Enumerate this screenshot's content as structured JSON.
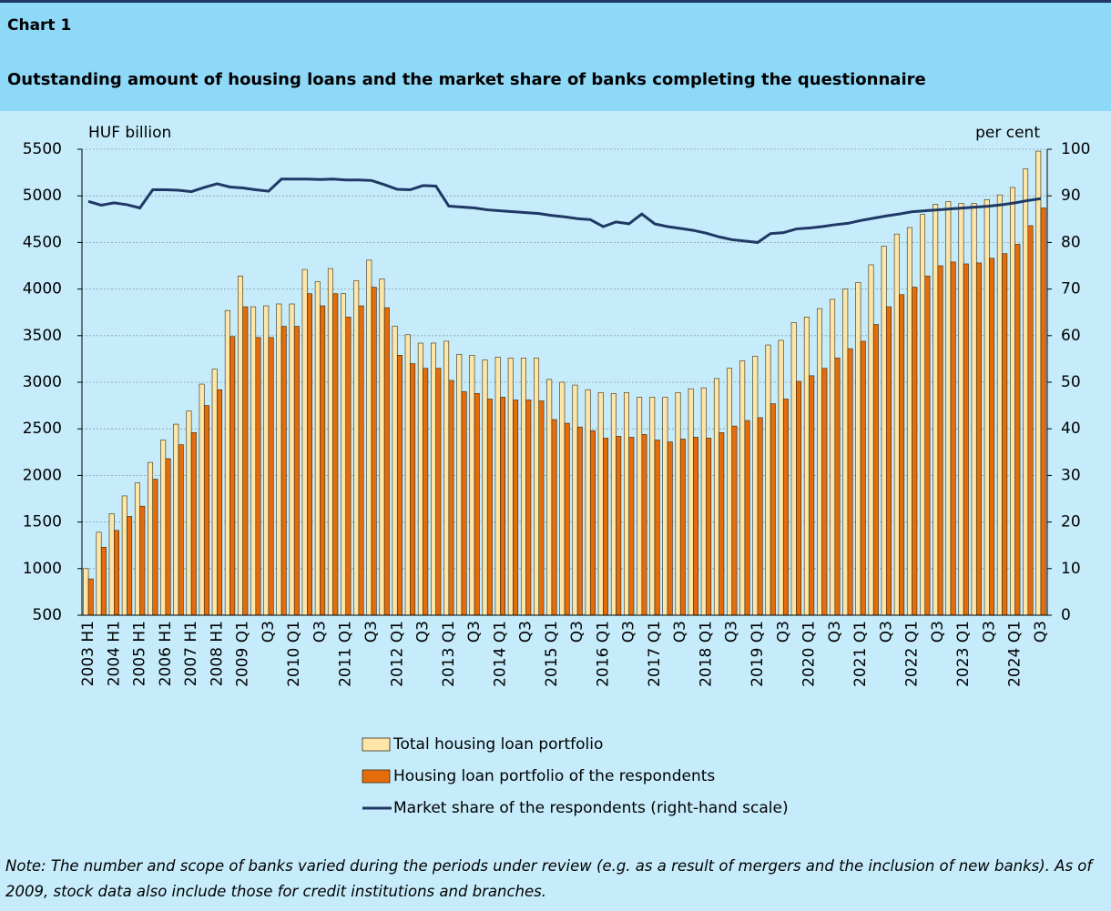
{
  "chart_data": {
    "type": "bar_line",
    "label": "Chart 1",
    "title": "Outstanding amount of housing loans and the market share of banks completing the questionnaire",
    "y_label": "HUF billion",
    "y2_label": "per cent",
    "note": "Note: The number and scope of banks varied during the periods under review (e.g. as a result of mergers and the inclusion of new banks). As of 2009, stock data also include those for credit institutions and branches.",
    "categories": [
      "2003 H1",
      null,
      "2004 H1",
      null,
      "2005 H1",
      null,
      "2006 H1",
      null,
      "2007 H1",
      null,
      "2008 H1",
      null,
      "2009 Q1",
      null,
      "Q3",
      null,
      "2010 Q1",
      null,
      "Q3",
      null,
      "2011 Q1",
      null,
      "Q3",
      null,
      "2012 Q1",
      null,
      "Q3",
      null,
      "2013 Q1",
      null,
      "Q3",
      null,
      "2014 Q1",
      null,
      "Q3",
      null,
      "2015 Q1",
      null,
      "Q3",
      null,
      "2016 Q1",
      null,
      "Q3",
      null,
      "2017 Q1",
      null,
      "Q3",
      null,
      "2018 Q1",
      null,
      "Q3",
      null,
      "2019 Q1",
      null,
      "Q3",
      null,
      "2020 Q1",
      null,
      "Q3",
      null,
      "2021 Q1",
      null,
      "Q3",
      null,
      "2022 Q1",
      null,
      "Q3",
      null,
      "2023 Q1",
      null,
      "Q3",
      null,
      "2024 Q1",
      null,
      "Q3"
    ],
    "series": [
      {
        "name": "Total housing loan portfolio",
        "type": "bar",
        "color": "#fde6a8",
        "values": [
          1000,
          1390,
          1590,
          1780,
          1920,
          2140,
          2380,
          2550,
          2690,
          2980,
          3140,
          3770,
          4140,
          3810,
          3820,
          3840,
          3840,
          4210,
          4080,
          4220,
          3950,
          4090,
          4310,
          4110,
          3600,
          3510,
          3420,
          3420,
          3440,
          3300,
          3290,
          3240,
          3270,
          3260,
          3260,
          3260,
          3030,
          3000,
          2970,
          2920,
          2890,
          2880,
          2890,
          2840,
          2840,
          2840,
          2890,
          2930,
          2940,
          3040,
          3150,
          3230,
          3280,
          3400,
          3450,
          3640,
          3700,
          3790,
          3890,
          4000,
          4070,
          4260,
          4460,
          4590,
          4660,
          4800,
          4910,
          4940,
          4920,
          4920,
          4960,
          5010,
          5090,
          5290,
          5480
        ]
      },
      {
        "name": "Housing loan portfolio of the respondents",
        "type": "bar",
        "color": "#e46c0a",
        "values": [
          890,
          1230,
          1410,
          1560,
          1670,
          1960,
          2180,
          2330,
          2460,
          2750,
          2920,
          3490,
          3810,
          3480,
          3480,
          3600,
          3600,
          3950,
          3820,
          3950,
          3700,
          3820,
          4020,
          3800,
          3290,
          3200,
          3150,
          3150,
          3020,
          2900,
          2880,
          2820,
          2840,
          2810,
          2810,
          2800,
          2600,
          2560,
          2520,
          2480,
          2400,
          2420,
          2410,
          2440,
          2380,
          2360,
          2390,
          2410,
          2400,
          2460,
          2530,
          2590,
          2620,
          2770,
          2820,
          3010,
          3070,
          3150,
          3260,
          3360,
          3440,
          3620,
          3810,
          3940,
          4020,
          4140,
          4250,
          4290,
          4270,
          4280,
          4330,
          4380,
          4480,
          4680,
          4870
        ]
      },
      {
        "name": "Market share of the respondents (right-hand scale)",
        "type": "line",
        "axis": "y2",
        "color": "#1f3864",
        "values": [
          88.8,
          88.0,
          88.5,
          88.1,
          87.4,
          91.3,
          91.3,
          91.2,
          90.9,
          91.8,
          92.6,
          91.9,
          91.7,
          91.3,
          91.0,
          93.6,
          93.6,
          93.6,
          93.5,
          93.6,
          93.4,
          93.4,
          93.3,
          92.4,
          91.4,
          91.3,
          92.2,
          92.1,
          87.8,
          87.6,
          87.4,
          87.0,
          86.8,
          86.6,
          86.4,
          86.2,
          85.8,
          85.5,
          85.1,
          84.9,
          83.4,
          84.4,
          84.0,
          86.1,
          84.0,
          83.4,
          83.0,
          82.6,
          82.0,
          81.2,
          80.6,
          80.3,
          80.0,
          81.9,
          82.1,
          82.9,
          83.1,
          83.4,
          83.8,
          84.1,
          84.7,
          85.2,
          85.7,
          86.1,
          86.6,
          86.8,
          87.0,
          87.2,
          87.4,
          87.6,
          87.8,
          88.1,
          88.5,
          89.0,
          89.4
        ]
      }
    ],
    "ylim": [
      500,
      5500
    ],
    "yticks": [
      500,
      1000,
      1500,
      2000,
      2500,
      3000,
      3500,
      4000,
      4500,
      5000,
      5500
    ],
    "y2lim": [
      0,
      100
    ],
    "y2ticks": [
      0,
      10,
      20,
      30,
      40,
      50,
      60,
      70,
      80,
      90,
      100
    ],
    "grid": true
  }
}
